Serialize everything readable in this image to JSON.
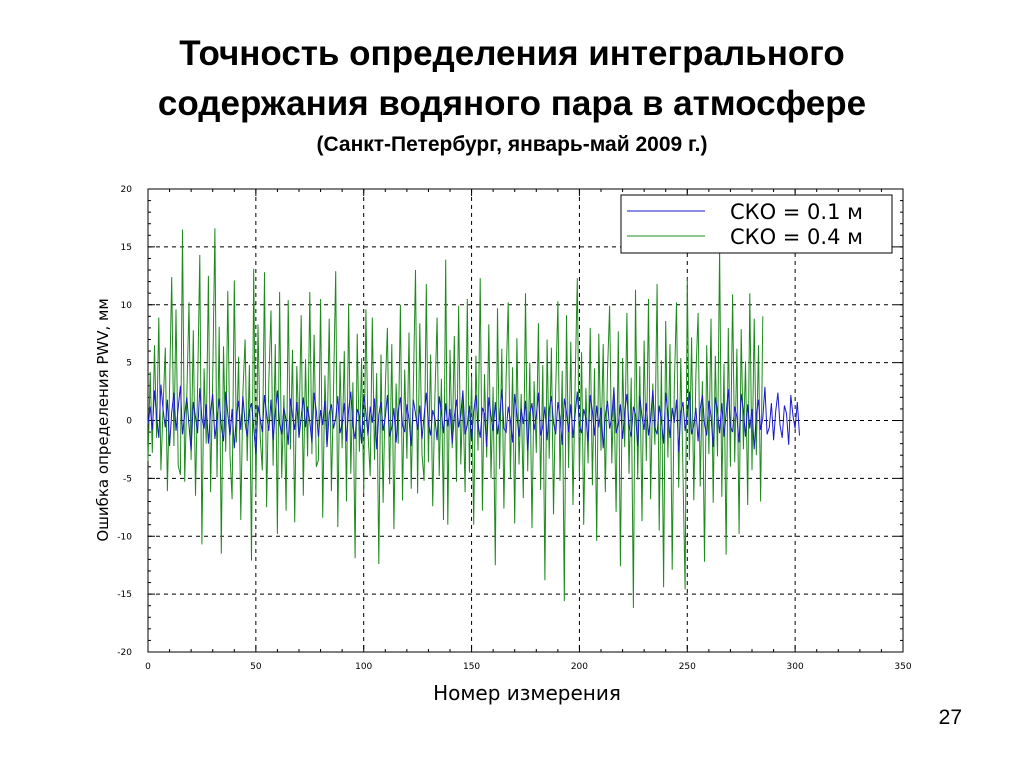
{
  "slide": {
    "title_line1": "Точность определения интегрального",
    "title_line2": "содержания водяного пара в атмосфере",
    "subtitle": "(Санкт-Петербург, январь-май 2009 г.)",
    "page_number": "27"
  },
  "chart_data": {
    "type": "line",
    "xlabel": "Номер измерения",
    "ylabel": "Ошибка определения PWV, мм",
    "xlim": [
      0,
      350
    ],
    "ylim": [
      -20,
      20
    ],
    "x_ticks": [
      0,
      50,
      100,
      150,
      200,
      250,
      300,
      350
    ],
    "y_ticks": [
      -20,
      -15,
      -10,
      -5,
      0,
      5,
      10,
      15,
      20
    ],
    "grid": true,
    "legend_position": "top-right",
    "series": [
      {
        "name": "СКО = 0.1 м",
        "color": "#1a1acc",
        "x_start": 0,
        "x_step": 1,
        "values": [
          -0.3,
          1.2,
          -0.8,
          2.6,
          0.4,
          -1.5,
          3.1,
          0.9,
          -0.6,
          1.8,
          -2.2,
          0.7,
          2.4,
          -0.9,
          1.1,
          3.0,
          -1.2,
          0.5,
          2.0,
          -0.4,
          -2.6,
          1.6,
          0.3,
          -1.1,
          2.8,
          0.2,
          -0.7,
          1.4,
          -2.0,
          0.8,
          2.3,
          -1.6,
          0.1,
          1.9,
          -0.5,
          -1.8,
          2.5,
          0.6,
          -1.3,
          1.0,
          -2.4,
          0.4,
          1.7,
          -0.8,
          2.1,
          -0.2,
          -1.4,
          0.9,
          1.5,
          -0.6,
          -2.9,
          1.3,
          0.2,
          -1.0,
          2.2,
          0.5,
          -0.9,
          1.8,
          -1.7,
          0.7,
          2.6,
          -0.3,
          -1.2,
          1.1,
          0.0,
          -2.1,
          1.9,
          0.4,
          -0.8,
          1.6,
          -1.5,
          0.3,
          2.0,
          -0.6,
          1.2,
          -0.1,
          -1.9,
          2.4,
          0.8,
          -1.4,
          0.9,
          -0.4,
          1.7,
          -2.3,
          0.6,
          1.4,
          -0.7,
          0.2,
          2.1,
          -1.1,
          -0.3,
          1.5,
          -1.8,
          0.9,
          2.5,
          -0.5,
          -1.6,
          1.0,
          0.4,
          -2.0,
          2.3,
          0.7,
          -1.3,
          1.2,
          -0.2,
          1.9,
          -2.5,
          0.5,
          1.6,
          -0.9,
          0.3,
          2.2,
          -1.4,
          -0.6,
          1.1,
          -1.9,
          0.8,
          2.0,
          -0.4,
          -1.0,
          1.4,
          0.1,
          -2.2,
          1.8,
          0.6,
          -0.8,
          1.3,
          -1.6,
          0.4,
          2.4,
          -0.2,
          -1.3,
          0.9,
          0.2,
          -1.7,
          2.1,
          0.7,
          -1.1,
          1.5,
          -0.5,
          1.0,
          -2.0,
          0.3,
          1.8,
          -0.6,
          0.5,
          2.6,
          -1.2,
          -0.4,
          1.3,
          -1.8,
          0.8,
          2.2,
          -0.3,
          -1.5,
          1.1,
          0.6,
          -2.3,
          2.0,
          0.4,
          -0.9,
          1.6,
          -1.2,
          0.2,
          2.7,
          -0.7,
          -1.0,
          1.2,
          0.0,
          -1.9,
          2.3,
          0.5,
          -1.4,
          1.0,
          -0.3,
          1.7,
          -2.6,
          0.6,
          1.5,
          -0.8,
          0.4,
          2.4,
          -1.3,
          -0.5,
          1.2,
          -1.7,
          0.9,
          2.1,
          -0.2,
          -1.2,
          1.6,
          0.3,
          -2.1,
          1.9,
          0.7,
          -1.0,
          1.4,
          -1.5,
          0.5,
          2.5,
          -0.4,
          -1.1,
          1.0,
          0.2,
          -1.8,
          2.2,
          0.8,
          -1.3,
          1.3,
          -0.6,
          1.1,
          -2.4,
          0.4,
          1.7,
          -0.7,
          0.3,
          2.8,
          -1.1,
          -0.3,
          1.4,
          -1.6,
          0.7,
          2.3,
          -0.5,
          -1.4,
          1.2,
          0.5,
          -2.2,
          2.1,
          0.3,
          -0.8,
          1.5,
          -1.3,
          0.1,
          2.6,
          -0.6,
          -1.2,
          1.3,
          0.0,
          -2.0,
          2.4,
          0.6,
          -1.5,
          1.1,
          -0.2,
          1.8,
          -2.7,
          0.7,
          1.6,
          -0.9,
          0.5,
          2.5,
          -1.2,
          -0.4,
          1.1,
          -1.8,
          1.0,
          2.2,
          -0.3,
          -1.3,
          1.7,
          0.4,
          -2.3,
          2.0,
          0.8,
          -1.1,
          1.5,
          -1.4,
          0.6,
          2.7,
          -0.5,
          -1.0,
          1.2,
          0.3,
          -1.9,
          2.3,
          0.9,
          -1.4,
          1.4,
          -0.7,
          1.0,
          -2.5,
          0.5,
          1.8,
          -0.8,
          0.2,
          2.9,
          -1.2,
          -0.6,
          1.5,
          -1.7,
          0.8,
          2.4,
          -0.4,
          -1.5,
          1.3,
          0.6,
          -2.1,
          2.2,
          0.4,
          -0.7,
          1.6,
          -1.3
        ],
        "note_end_x": 302
      },
      {
        "name": "СКО = 0.4 м",
        "color": "#1e8a1e",
        "x_start": 0,
        "x_step": 1,
        "values": [
          -3.5,
          4.2,
          -2.8,
          6.5,
          -1.5,
          8.9,
          -4.3,
          1.2,
          6.3,
          -6.1,
          3.0,
          12.4,
          -2.2,
          9.6,
          -3.9,
          -4.7,
          16.5,
          -5.3,
          2.1,
          10.2,
          -3.4,
          7.8,
          -6.5,
          2.9,
          14.3,
          -10.7,
          4.5,
          -2.0,
          12.5,
          -6.2,
          3.6,
          16.6,
          -4.9,
          8.1,
          -11.5,
          6.4,
          -2.7,
          11.2,
          -3.0,
          -6.8,
          12.1,
          -1.9,
          5.5,
          -8.6,
          2.4,
          7.0,
          -3.5,
          4.8,
          -12.1,
          13.1,
          -6.4,
          8.3,
          -1.4,
          -4.3,
          12.8,
          -7.5,
          3.3,
          9.5,
          -3.9,
          6.6,
          -9.8,
          11.1,
          -5.0,
          2.2,
          -7.8,
          10.4,
          -2.5,
          6.1,
          -8.8,
          4.7,
          -1.0,
          9.1,
          -6.5,
          5.3,
          -3.1,
          11.1,
          -2.9,
          7.4,
          -4.0,
          -3.4,
          10.5,
          -8.4,
          3.9,
          -2.2,
          8.8,
          -6.1,
          2.5,
          12.9,
          -9.2,
          5.1,
          -2.4,
          6.0,
          -7.0,
          10.1,
          -4.6,
          3.3,
          -11.9,
          7.5,
          -2.7,
          5.4,
          -6.3,
          9.6,
          -1.1,
          -4.8,
          8.9,
          -3.4,
          4.1,
          -12.4,
          5.7,
          -7.1,
          2.8,
          8.0,
          -5.5,
          6.6,
          -9.4,
          3.2,
          -2.0,
          10.0,
          -6.9,
          4.4,
          -3.3,
          7.6,
          -5.9,
          2.6,
          13.0,
          -6.3,
          8.4,
          -2.9,
          -5.2,
          11.8,
          -3.6,
          5.7,
          -7.4,
          2.0,
          8.9,
          -4.8,
          3.6,
          -8.6,
          13.9,
          -9.0,
          6.1,
          -2.4,
          7.3,
          -5.3,
          9.9,
          -3.8,
          2.4,
          -6.2,
          10.5,
          -4.5,
          3.8,
          -9.0,
          5.6,
          -2.6,
          12.3,
          -7.8,
          4.0,
          -3.2,
          8.3,
          -5.0,
          2.9,
          -12.5,
          9.7,
          -4.2,
          6.2,
          -7.6,
          3.6,
          10.2,
          -5.0,
          4.6,
          -8.9,
          7.1,
          -3.8,
          2.3,
          -6.7,
          11.0,
          -4.4,
          5.0,
          -9.3,
          3.4,
          -2.8,
          8.4,
          -6.0,
          4.8,
          -13.8,
          7.0,
          -3.3,
          6.3,
          -8.1,
          2.7,
          10.3,
          -5.2,
          4.3,
          -15.6,
          9.1,
          -4.1,
          6.8,
          -7.3,
          3.1,
          12.3,
          -4.9,
          5.9,
          -9.0,
          2.8,
          -3.7,
          8.0,
          -5.6,
          4.5,
          -10.4,
          7.5,
          -2.6,
          6.6,
          -6.2,
          4.2,
          9.9,
          -3.7,
          2.9,
          -7.9,
          7.7,
          -12.6,
          5.4,
          -2.3,
          9.3,
          -4.6,
          3.7,
          -16.2,
          11.3,
          -5.1,
          4.7,
          -8.7,
          6.9,
          -3.5,
          10.5,
          -6.8,
          3.2,
          -2.1,
          11.8,
          -9.5,
          5.2,
          -14.4,
          8.6,
          -3.2,
          6.6,
          -12.9,
          2.9,
          10.2,
          -5.8,
          5.4,
          -4.7,
          -14.6,
          12.3,
          -3.4,
          7.2,
          -6.9,
          4.0,
          9.3,
          -5.7,
          3.4,
          -12.2,
          6.5,
          -2.9,
          8.8,
          -7.1,
          5.6,
          -3.1,
          14.9,
          -6.6,
          4.9,
          -11.6,
          8.0,
          -4.0,
          10.9,
          -3.6,
          6.2,
          -9.8,
          7.9,
          -2.5,
          5.1,
          -7.3,
          11.0,
          -4.3,
          8.8,
          -3.0,
          6.5,
          -7.0,
          9.0
        ],
        "note_end_x": 302
      }
    ]
  }
}
